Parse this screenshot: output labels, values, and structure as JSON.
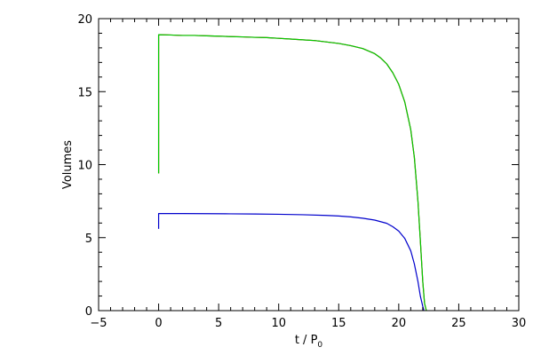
{
  "chart_data": {
    "type": "line",
    "xlabel": "t / P",
    "xlabel_subscript": "0",
    "ylabel": "Volumes",
    "xlim": [
      -5,
      30
    ],
    "ylim": [
      0,
      20
    ],
    "x_ticks": [
      -5,
      0,
      5,
      10,
      15,
      20,
      25,
      30
    ],
    "y_ticks": [
      0,
      5,
      10,
      15,
      20
    ],
    "grid": false,
    "legend": "none",
    "series": [
      {
        "color": "#cc0000",
        "points": [
          [
            0,
            9.4
          ],
          [
            0,
            18.9
          ],
          [
            1,
            18.88
          ],
          [
            2,
            18.85
          ],
          [
            3,
            18.85
          ],
          [
            4,
            18.82
          ],
          [
            5,
            18.8
          ],
          [
            6,
            18.77
          ],
          [
            7,
            18.75
          ],
          [
            8,
            18.72
          ],
          [
            9,
            18.7
          ],
          [
            10,
            18.65
          ],
          [
            11,
            18.6
          ],
          [
            12,
            18.55
          ],
          [
            13,
            18.5
          ],
          [
            14,
            18.4
          ],
          [
            15,
            18.3
          ],
          [
            16,
            18.15
          ],
          [
            17,
            17.95
          ],
          [
            18,
            17.6
          ],
          [
            18.5,
            17.3
          ],
          [
            19,
            16.9
          ],
          [
            19.5,
            16.3
          ],
          [
            20,
            15.5
          ],
          [
            20.5,
            14.3
          ],
          [
            21,
            12.4
          ],
          [
            21.3,
            10.5
          ],
          [
            21.6,
            7.5
          ],
          [
            21.8,
            4.8
          ],
          [
            22,
            2.0
          ],
          [
            22.15,
            0.5
          ],
          [
            22.3,
            0
          ]
        ]
      },
      {
        "color": "#00cc00",
        "points": [
          [
            0,
            9.4
          ],
          [
            0,
            18.9
          ],
          [
            1,
            18.88
          ],
          [
            2,
            18.85
          ],
          [
            3,
            18.85
          ],
          [
            4,
            18.82
          ],
          [
            5,
            18.8
          ],
          [
            6,
            18.77
          ],
          [
            7,
            18.75
          ],
          [
            8,
            18.72
          ],
          [
            9,
            18.7
          ],
          [
            10,
            18.65
          ],
          [
            11,
            18.6
          ],
          [
            12,
            18.55
          ],
          [
            13,
            18.5
          ],
          [
            14,
            18.4
          ],
          [
            15,
            18.3
          ],
          [
            16,
            18.15
          ],
          [
            17,
            17.95
          ],
          [
            18,
            17.6
          ],
          [
            18.5,
            17.3
          ],
          [
            19,
            16.9
          ],
          [
            19.5,
            16.3
          ],
          [
            20,
            15.5
          ],
          [
            20.5,
            14.3
          ],
          [
            21,
            12.4
          ],
          [
            21.3,
            10.5
          ],
          [
            21.6,
            7.5
          ],
          [
            21.8,
            4.8
          ],
          [
            22,
            2.0
          ],
          [
            22.15,
            0.5
          ],
          [
            22.3,
            0
          ]
        ]
      },
      {
        "color": "#0000cc",
        "points": [
          [
            0,
            5.6
          ],
          [
            0,
            6.65
          ],
          [
            2,
            6.65
          ],
          [
            4,
            6.64
          ],
          [
            6,
            6.63
          ],
          [
            8,
            6.62
          ],
          [
            10,
            6.6
          ],
          [
            12,
            6.57
          ],
          [
            14,
            6.52
          ],
          [
            15,
            6.48
          ],
          [
            16,
            6.42
          ],
          [
            17,
            6.33
          ],
          [
            18,
            6.2
          ],
          [
            19,
            5.98
          ],
          [
            19.5,
            5.75
          ],
          [
            20,
            5.45
          ],
          [
            20.5,
            4.95
          ],
          [
            21,
            4.1
          ],
          [
            21.3,
            3.2
          ],
          [
            21.6,
            2.0
          ],
          [
            21.8,
            1.0
          ],
          [
            22,
            0.3
          ],
          [
            22.1,
            0
          ]
        ]
      }
    ]
  }
}
